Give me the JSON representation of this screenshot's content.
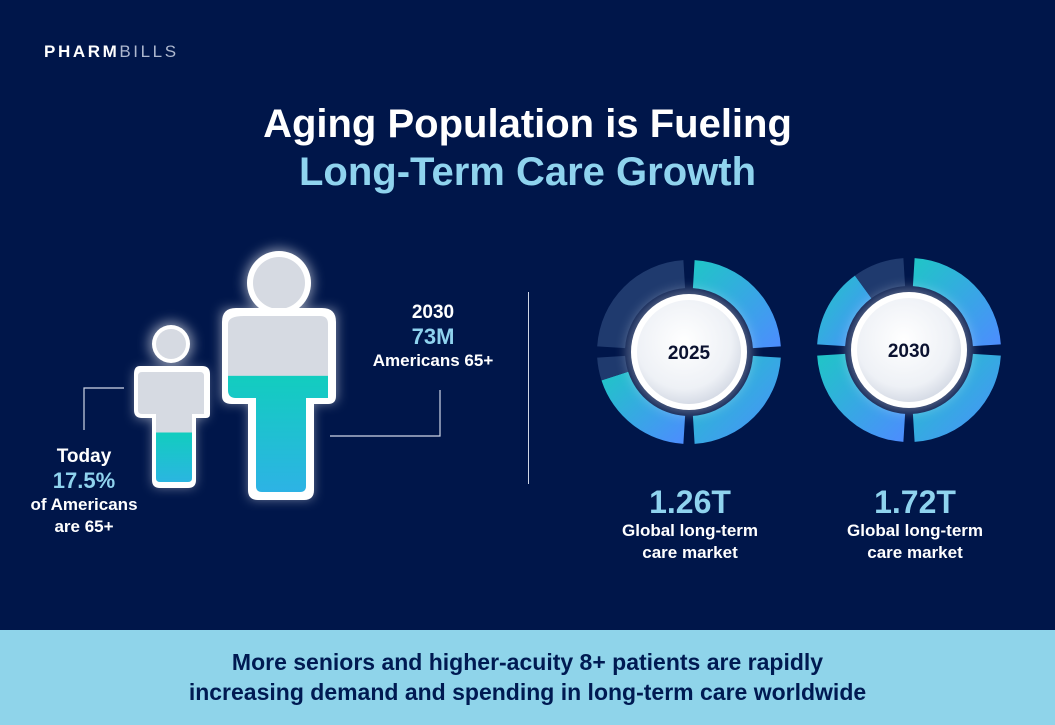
{
  "logo": {
    "part1": "PHARM",
    "part2": "BILLS"
  },
  "title": {
    "line1": "Aging Population is Fueling",
    "line2": "Long-Term Care Growth"
  },
  "population": {
    "today": {
      "label": "Today",
      "value": "17.5%",
      "sub1": "of Americans",
      "sub2": "are 65+",
      "fill_fraction": 0.45
    },
    "future": {
      "label": "2030",
      "value": "73M",
      "sub": "Americans 65+",
      "fill_fraction": 0.66
    }
  },
  "markets": [
    {
      "year": "2025",
      "amount": "1.26T",
      "desc1": "Global long-term",
      "desc2": "care market",
      "filled_fraction": 0.7
    },
    {
      "year": "2030",
      "amount": "1.72T",
      "desc1": "Global long-term",
      "desc2": "care market",
      "filled_fraction": 0.9
    }
  ],
  "banner": {
    "line1": "More seniors and higher-acuity 8+ patients are rapidly",
    "line2": "increasing demand and spending in long-term care worldwide"
  },
  "colors": {
    "background": "#00164a",
    "accent": "#8fd3ee",
    "teal": "#1ec7c4",
    "blue": "#4a8dff",
    "muted_segment": "#1f3a6e"
  }
}
